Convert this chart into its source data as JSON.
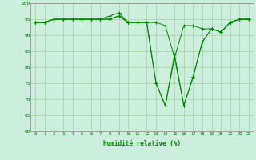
{
  "x": [
    0,
    1,
    2,
    3,
    4,
    5,
    6,
    7,
    8,
    9,
    10,
    11,
    12,
    13,
    14,
    15,
    16,
    17,
    18,
    19,
    20,
    21,
    22,
    23
  ],
  "line1": [
    94,
    94,
    95,
    95,
    95,
    95,
    95,
    95,
    95,
    96,
    94,
    94,
    94,
    94,
    93,
    83,
    93,
    93,
    92,
    92,
    91,
    94,
    95,
    95
  ],
  "line2": [
    94,
    94,
    95,
    95,
    95,
    95,
    95,
    95,
    95,
    96,
    94,
    94,
    94,
    75,
    68,
    84,
    68,
    77,
    88,
    92,
    91,
    94,
    95,
    95
  ],
  "line3": [
    94,
    94,
    95,
    95,
    95,
    95,
    95,
    95,
    96,
    97,
    94,
    94,
    94,
    75,
    68,
    83,
    68,
    77,
    88,
    92,
    91,
    94,
    95,
    95
  ],
  "line_color": "#008800",
  "background_color": "#cceedd",
  "grid_color": "#aaccaa",
  "xlabel": "Humidité relative (%)",
  "ylim": [
    60,
    100
  ],
  "xlim": [
    -0.5,
    23.5
  ],
  "yticks": [
    60,
    65,
    70,
    75,
    80,
    85,
    90,
    95,
    100
  ],
  "xticks": [
    0,
    1,
    2,
    3,
    4,
    5,
    6,
    7,
    8,
    9,
    10,
    11,
    12,
    13,
    14,
    15,
    16,
    17,
    18,
    19,
    20,
    21,
    22,
    23
  ]
}
